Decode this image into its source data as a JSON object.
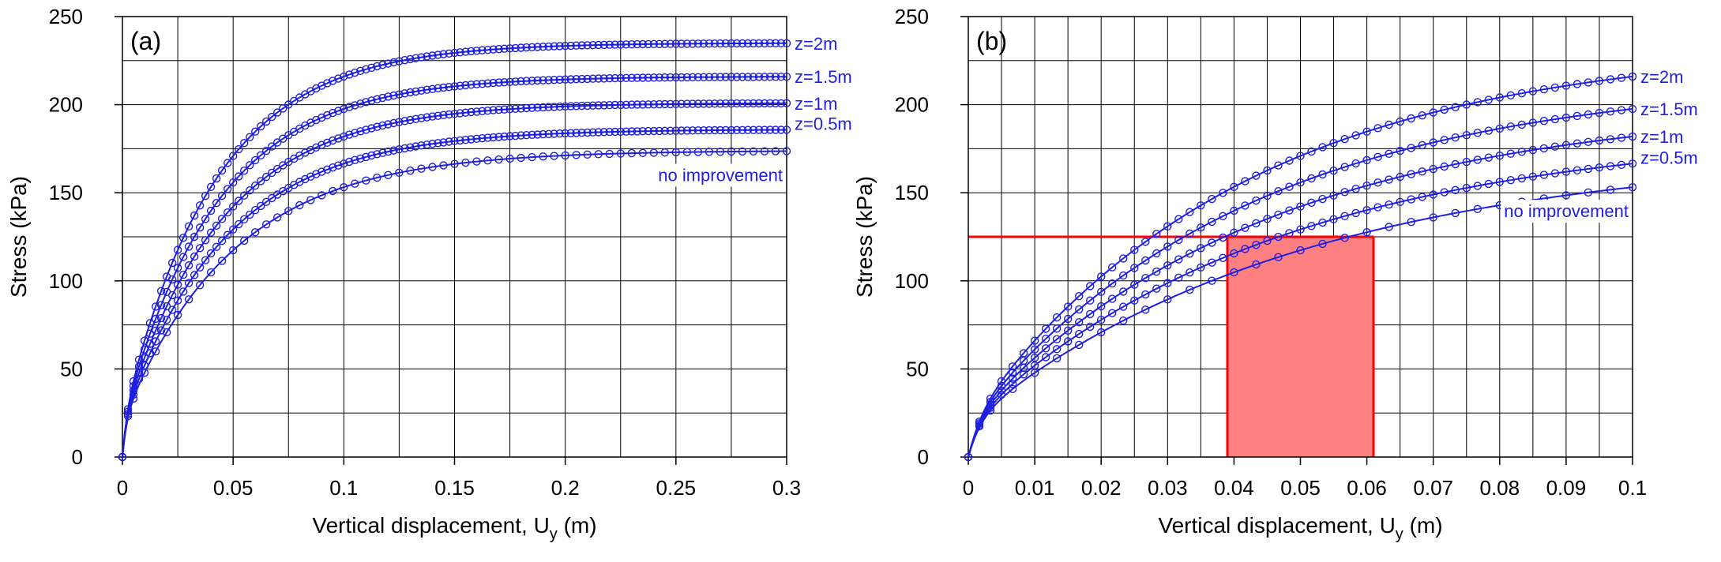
{
  "colors": {
    "series": "#1f1fe0",
    "highlight_line": "#ff0000",
    "highlight_fill": "#ff8080",
    "grid": "#000000"
  },
  "chart_data": [
    {
      "type": "line",
      "panel_label": "(a)",
      "xlabel_main": "Vertical displacement, U",
      "xlabel_sub": "y",
      "xlabel_unit": " (m)",
      "ylabel": "Stress (kPa)",
      "xlim": [
        0,
        0.3
      ],
      "ylim": [
        0,
        250
      ],
      "xticks": [
        0,
        0.05,
        0.1,
        0.15,
        0.2,
        0.25,
        0.3
      ],
      "xtick_labels": [
        "0",
        "0.05",
        "0.1",
        "0.15",
        "0.2",
        "0.25",
        "0.3"
      ],
      "yticks": [
        0,
        50,
        100,
        150,
        200,
        250
      ],
      "ytick_labels": [
        "0",
        "50",
        "100",
        "150",
        "200",
        "250"
      ],
      "grid": true,
      "series": [
        {
          "label": "z=2m",
          "ymax": 235,
          "k": 0.042
        },
        {
          "label": "z=1.5m",
          "ymax": 216,
          "k": 0.043
        },
        {
          "label": "z=1m",
          "ymax": 201,
          "k": 0.045
        },
        {
          "label": "z=0.5m",
          "ymax": 186,
          "k": 0.047
        },
        {
          "label": "no improvement",
          "ymax": 174,
          "k": 0.05
        }
      ]
    },
    {
      "type": "line",
      "panel_label": "(b)",
      "xlabel_main": "Vertical displacement, U",
      "xlabel_sub": "y",
      "xlabel_unit": " (m)",
      "ylabel": "Stress (kPa)",
      "xlim": [
        0,
        0.1
      ],
      "ylim": [
        0,
        250
      ],
      "xticks": [
        0,
        0.01,
        0.02,
        0.03,
        0.04,
        0.05,
        0.06,
        0.07,
        0.08,
        0.09,
        0.1
      ],
      "xtick_labels": [
        "0",
        "0.01",
        "0.02",
        "0.03",
        "0.04",
        "0.05",
        "0.06",
        "0.07",
        "0.08",
        "0.09",
        "0.1"
      ],
      "yticks": [
        0,
        50,
        100,
        150,
        200,
        250
      ],
      "ytick_labels": [
        "0",
        "50",
        "100",
        "150",
        "200",
        "250"
      ],
      "grid": true,
      "series": [
        {
          "label": "z=2m",
          "ymax": 235,
          "k": 0.042
        },
        {
          "label": "z=1.5m",
          "ymax": 216,
          "k": 0.043
        },
        {
          "label": "z=1m",
          "ymax": 201,
          "k": 0.045
        },
        {
          "label": "z=0.5m",
          "ymax": 186,
          "k": 0.047
        },
        {
          "label": "no improvement",
          "ymax": 174,
          "k": 0.05
        }
      ],
      "highlight": {
        "stress": 125,
        "x_from": 0.039,
        "x_to": 0.061
      }
    }
  ]
}
